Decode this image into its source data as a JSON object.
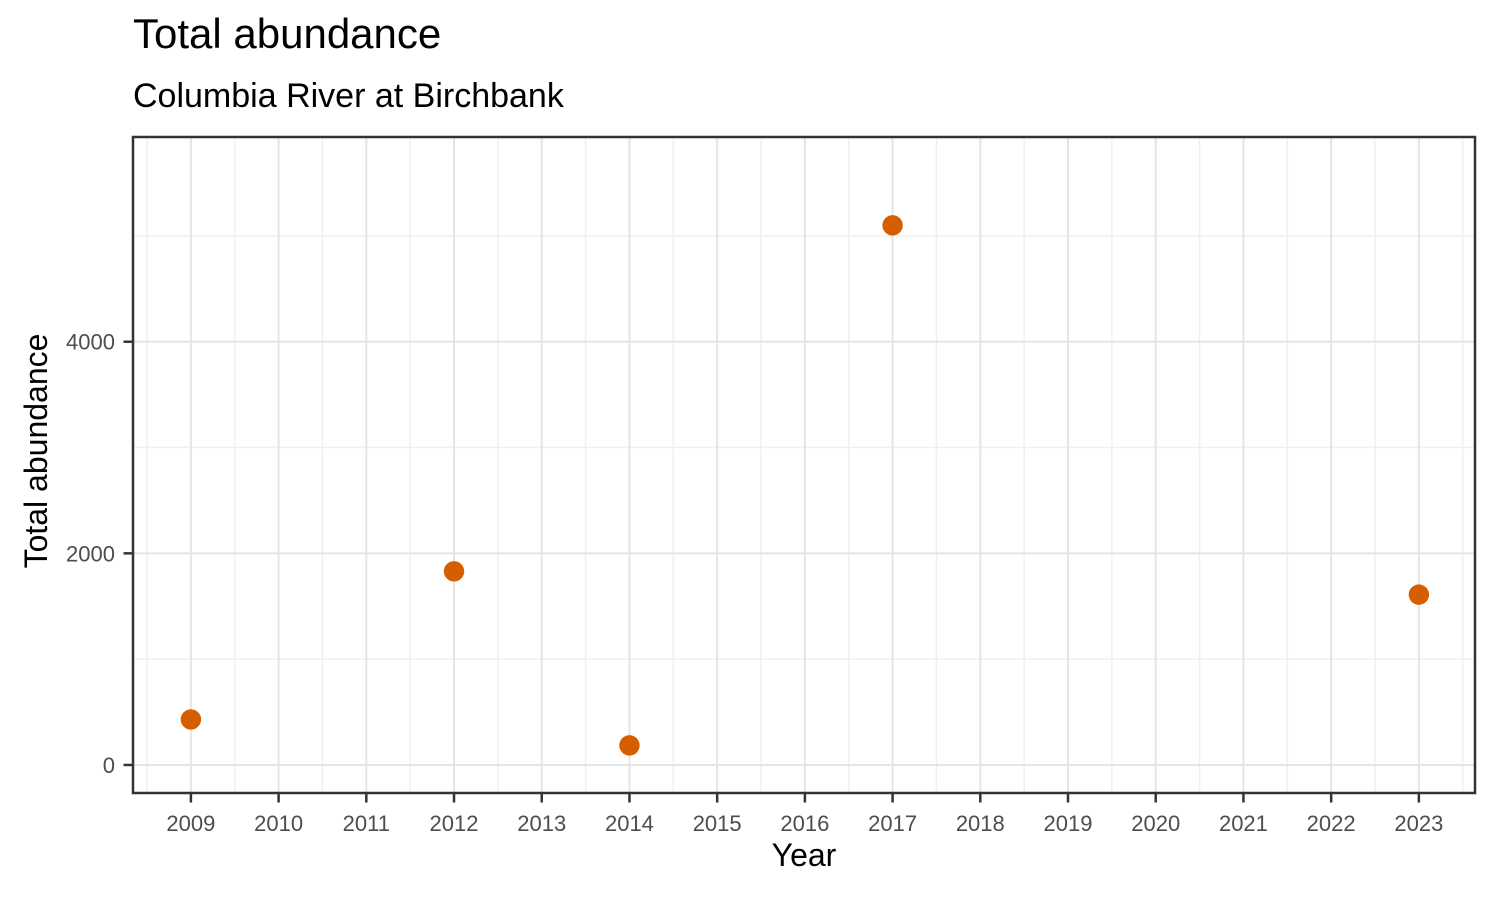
{
  "chart_data": {
    "type": "scatter",
    "title": "Total abundance",
    "subtitle": "Columbia River at Birchbank",
    "xlabel": "Year",
    "ylabel": "Total abundance",
    "points": [
      {
        "x": 2009,
        "y": 430
      },
      {
        "x": 2012,
        "y": 1830
      },
      {
        "x": 2014,
        "y": 185
      },
      {
        "x": 2017,
        "y": 5100
      },
      {
        "x": 2023,
        "y": 1610
      }
    ],
    "x_ticks": [
      2009,
      2010,
      2011,
      2012,
      2013,
      2014,
      2015,
      2016,
      2017,
      2018,
      2019,
      2020,
      2021,
      2022,
      2023
    ],
    "x_tick_labels": [
      "2009",
      "2010",
      "2011",
      "2012",
      "2013",
      "2014",
      "2015",
      "2016",
      "2017",
      "2018",
      "2019",
      "2020",
      "2021",
      "2022",
      "2023"
    ],
    "x_minor_ticks": [
      2008.5,
      2009.5,
      2010.5,
      2011.5,
      2012.5,
      2013.5,
      2014.5,
      2015.5,
      2016.5,
      2017.5,
      2018.5,
      2019.5,
      2020.5,
      2021.5,
      2022.5,
      2023.5
    ],
    "y_ticks": [
      0,
      2000,
      4000
    ],
    "y_tick_labels": [
      "0",
      "2000",
      "4000"
    ],
    "y_minor_ticks": [
      1000,
      3000,
      5000
    ],
    "xlim": [
      2008.34,
      2023.64
    ],
    "ylim": [
      -265,
      5935
    ],
    "grid": "on",
    "legend": "none",
    "colors": {
      "point": "#D55E00",
      "grid_major": "#E5E5E5",
      "grid_minor": "#F0F0F0",
      "panel_border": "#333333",
      "tick_mark": "#333333",
      "tick_label": "#4D4D4D",
      "text": "#000000",
      "background": "#FFFFFF"
    }
  }
}
